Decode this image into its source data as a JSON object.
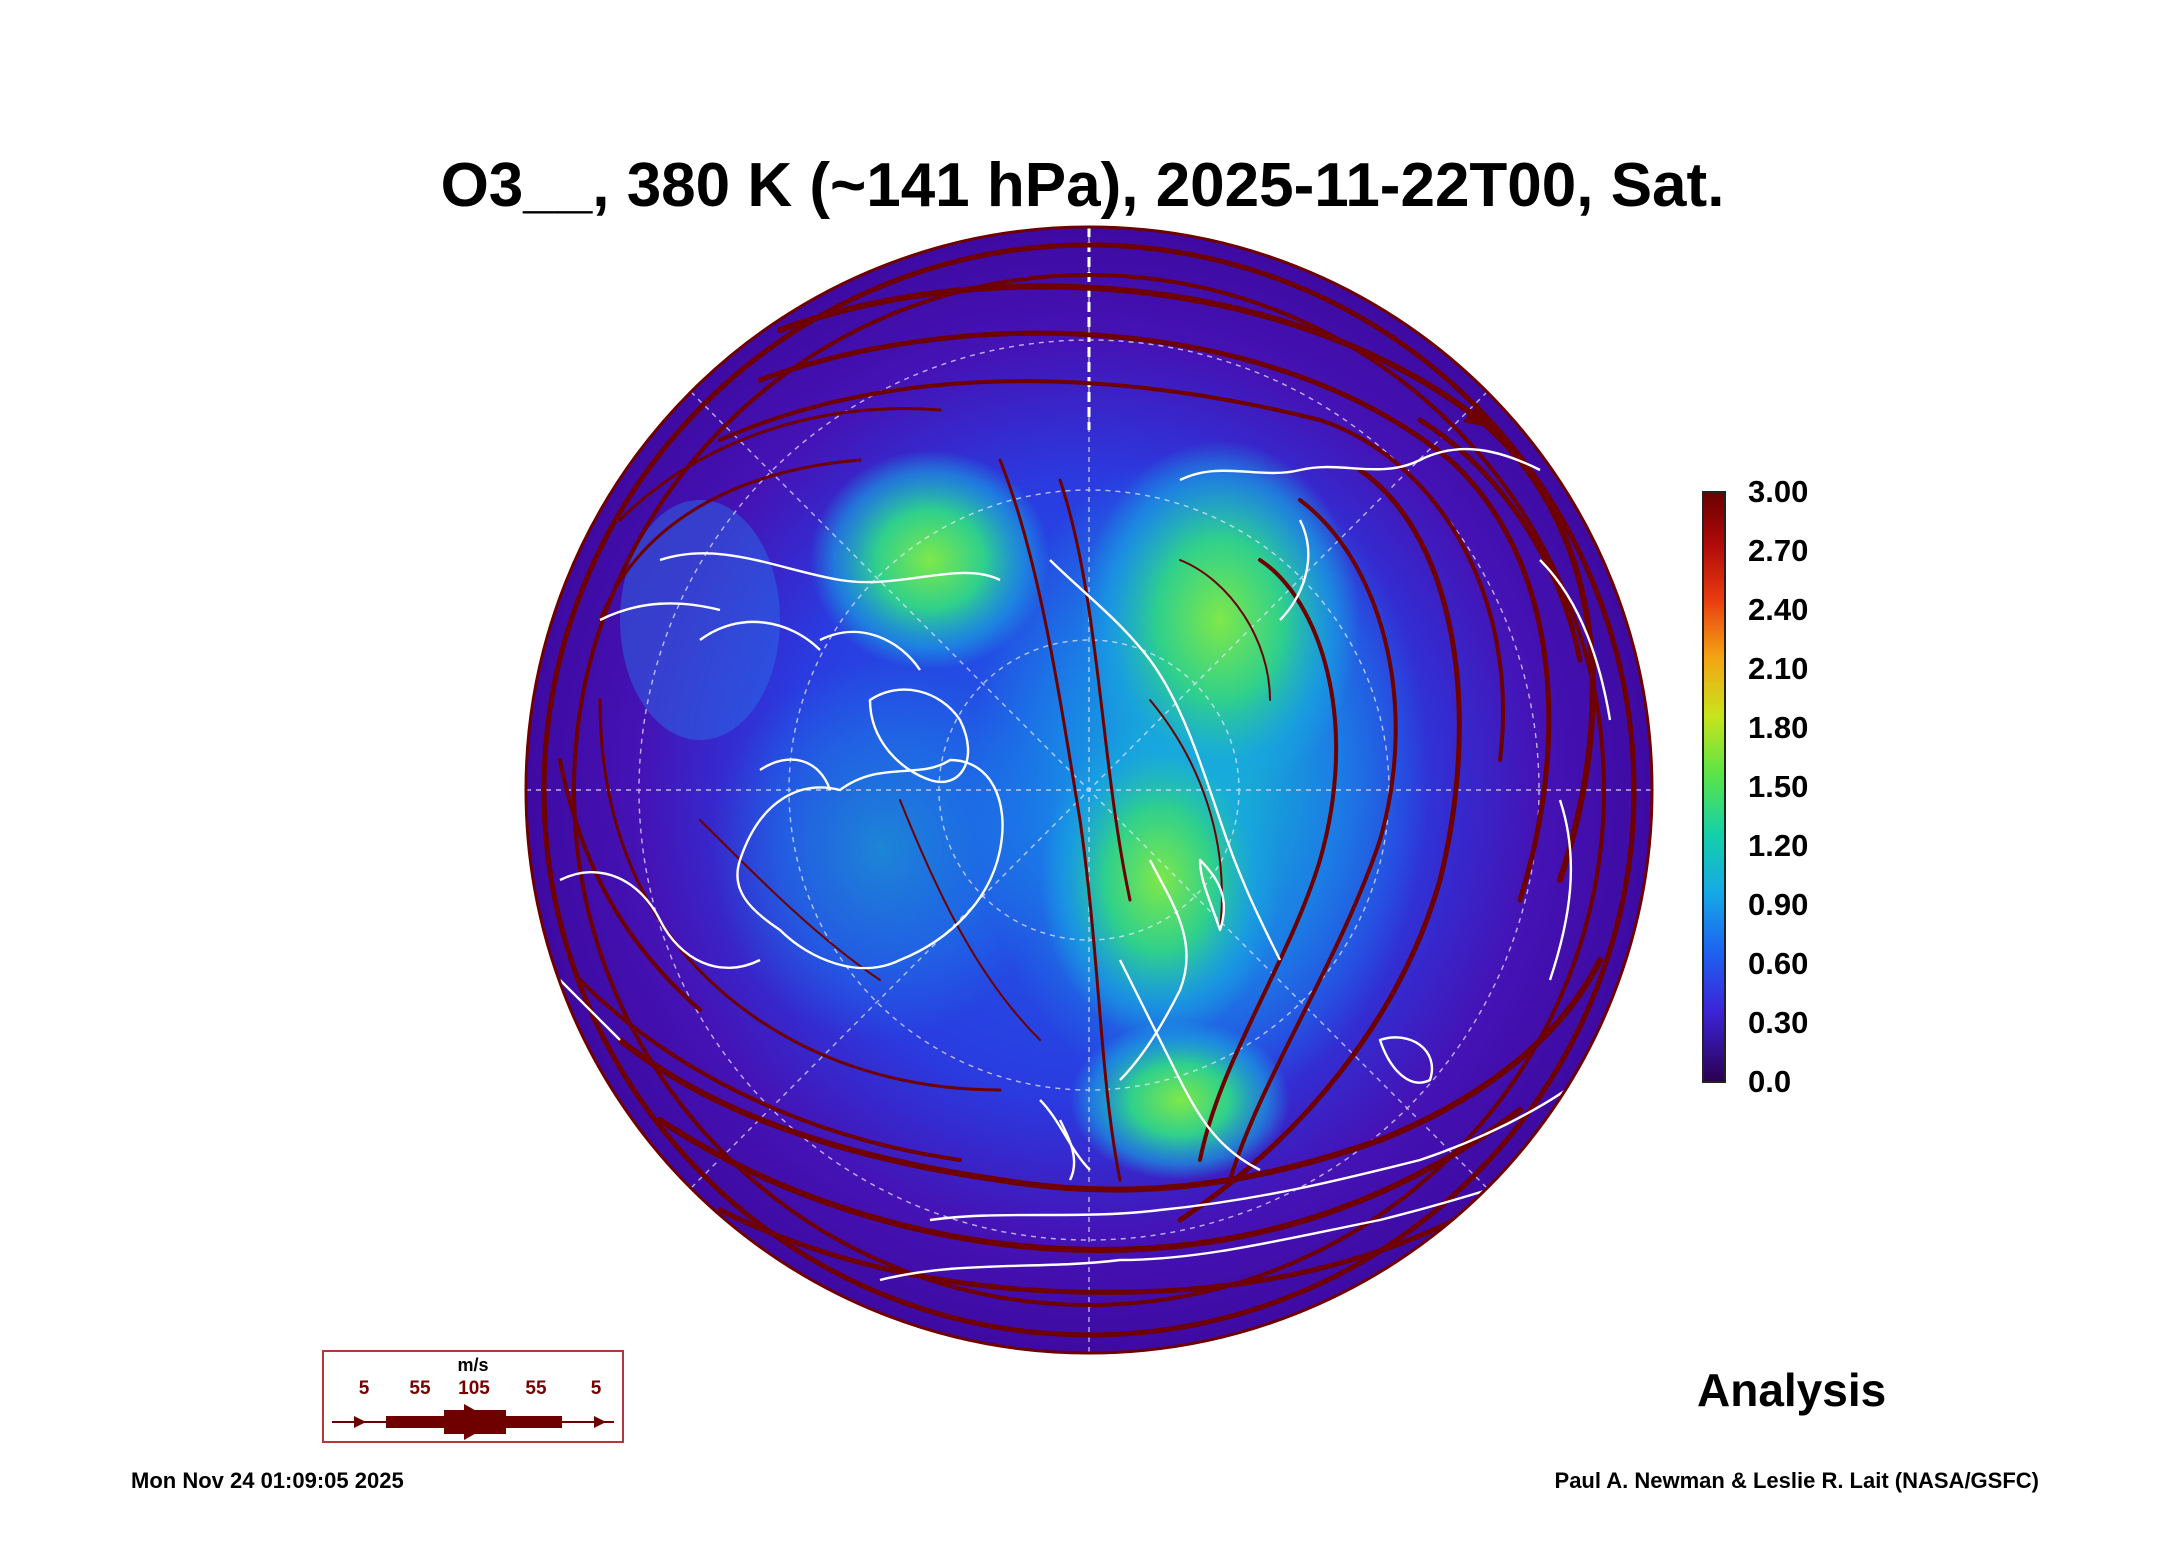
{
  "title": "O3__, 380 K (~141 hPa), 2025-11-22T00, Sat.",
  "colorbar": {
    "labels": [
      "3.00",
      "2.70",
      "2.40",
      "2.10",
      "1.80",
      "1.50",
      "1.20",
      "0.90",
      "0.60",
      "0.30",
      "0.0"
    ],
    "colors": [
      "#2a0050",
      "#4a0a9a",
      "#3a2ce0",
      "#1e6cf0",
      "#16a6e8",
      "#12d2a0",
      "#3ae45a",
      "#a8e628",
      "#f0d018",
      "#f47810",
      "#d81a0a",
      "#6a0000"
    ]
  },
  "wind_legend": {
    "unit": "m/s",
    "values": [
      "5",
      "55",
      "105",
      "55",
      "5"
    ],
    "color": "#6e0000"
  },
  "analysis_label": "Analysis",
  "timestamp": "Mon Nov 24 01:09:05 2025",
  "credit": "Paul A. Newman & Leslie R. Lait (NASA/GSFC)",
  "colors": {
    "background_field": "#4a10b8",
    "streamline": "#6e0000",
    "coastline": "#ffffff"
  }
}
